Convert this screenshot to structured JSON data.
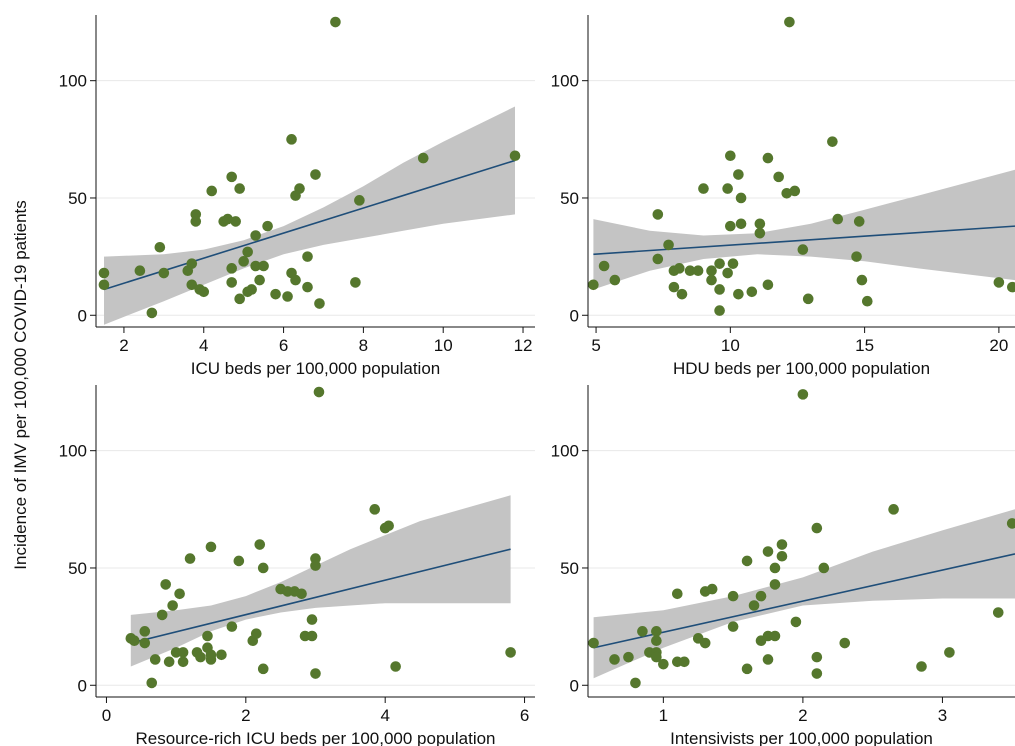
{
  "figure": {
    "ylabel": "Incidence of IMV per 100,000 COVID-19 patients",
    "colors": {
      "point": "#55772d",
      "fit_line": "#1f4e79",
      "ci_band": "#c4c4c4",
      "axis": "#111111",
      "grid": "#e8e8e8"
    }
  },
  "chart_data": [
    {
      "type": "scatter",
      "xlabel": "ICU beds per 100,000 population",
      "ylabel": "",
      "xlim": [
        1.3,
        12.3
      ],
      "ylim": [
        -5,
        128
      ],
      "xticks": [
        2,
        4,
        6,
        8,
        10,
        12
      ],
      "yticks": [
        0,
        50,
        100
      ],
      "grid": true,
      "fit": {
        "x": [
          1.5,
          11.8
        ],
        "y": [
          11,
          66
        ]
      },
      "ci_band": {
        "x": [
          1.5,
          3,
          4,
          5,
          6,
          7,
          8,
          9,
          10,
          11.8
        ],
        "lower": [
          -4,
          6,
          13,
          20,
          26,
          30,
          33,
          36,
          39,
          43
        ],
        "upper": [
          25,
          26,
          28,
          32,
          38,
          46,
          55,
          65,
          74,
          89
        ]
      },
      "points": [
        [
          1.5,
          18
        ],
        [
          1.5,
          13
        ],
        [
          2.4,
          19
        ],
        [
          2.7,
          1
        ],
        [
          2.9,
          29
        ],
        [
          3.0,
          18
        ],
        [
          3.6,
          19
        ],
        [
          3.7,
          22
        ],
        [
          3.7,
          13
        ],
        [
          3.8,
          43
        ],
        [
          3.8,
          40
        ],
        [
          3.9,
          11
        ],
        [
          4.0,
          10
        ],
        [
          4.2,
          53
        ],
        [
          4.5,
          40
        ],
        [
          4.6,
          41
        ],
        [
          4.7,
          20
        ],
        [
          4.7,
          14
        ],
        [
          4.7,
          59
        ],
        [
          4.8,
          40
        ],
        [
          4.9,
          54
        ],
        [
          4.9,
          7
        ],
        [
          5.0,
          23
        ],
        [
          5.1,
          27
        ],
        [
          5.1,
          10
        ],
        [
          5.2,
          11
        ],
        [
          5.3,
          21
        ],
        [
          5.3,
          34
        ],
        [
          5.4,
          15
        ],
        [
          5.5,
          21
        ],
        [
          5.6,
          38
        ],
        [
          5.8,
          9
        ],
        [
          6.1,
          8
        ],
        [
          6.2,
          18
        ],
        [
          6.2,
          75
        ],
        [
          6.3,
          51
        ],
        [
          6.3,
          15
        ],
        [
          6.4,
          54
        ],
        [
          6.6,
          25
        ],
        [
          6.6,
          12
        ],
        [
          6.8,
          60
        ],
        [
          6.9,
          5
        ],
        [
          7.3,
          125
        ],
        [
          7.8,
          14
        ],
        [
          7.9,
          49
        ],
        [
          9.5,
          67
        ],
        [
          11.8,
          68
        ]
      ]
    },
    {
      "type": "scatter",
      "xlabel": "HDU beds per 100,000 population",
      "ylabel": "",
      "xlim": [
        4.7,
        20.6
      ],
      "ylim": [
        -5,
        128
      ],
      "xticks": [
        5,
        10,
        15,
        20
      ],
      "yticks": [
        0,
        50,
        100
      ],
      "grid": true,
      "fit": {
        "x": [
          4.9,
          20.6
        ],
        "y": [
          26,
          38
        ]
      },
      "ci_band": {
        "x": [
          4.9,
          7,
          9,
          11,
          13,
          15,
          17,
          20.6
        ],
        "lower": [
          11,
          19,
          24,
          26,
          25,
          23,
          20,
          15
        ],
        "upper": [
          41,
          36,
          34,
          35,
          39,
          45,
          51,
          62
        ]
      },
      "points": [
        [
          4.9,
          13
        ],
        [
          5.3,
          21
        ],
        [
          5.7,
          15
        ],
        [
          7.3,
          43
        ],
        [
          7.3,
          24
        ],
        [
          7.7,
          30
        ],
        [
          7.9,
          19
        ],
        [
          7.9,
          12
        ],
        [
          8.1,
          20
        ],
        [
          8.2,
          9
        ],
        [
          8.5,
          19
        ],
        [
          8.8,
          19
        ],
        [
          9.0,
          54
        ],
        [
          9.3,
          19
        ],
        [
          9.3,
          15
        ],
        [
          9.6,
          2
        ],
        [
          9.6,
          22
        ],
        [
          9.6,
          11
        ],
        [
          9.9,
          54
        ],
        [
          9.9,
          18
        ],
        [
          10.0,
          38
        ],
        [
          10.0,
          68
        ],
        [
          10.1,
          22
        ],
        [
          10.3,
          9
        ],
        [
          10.3,
          60
        ],
        [
          10.4,
          50
        ],
        [
          10.4,
          39
        ],
        [
          10.8,
          10
        ],
        [
          11.1,
          39
        ],
        [
          11.1,
          35
        ],
        [
          11.4,
          67
        ],
        [
          11.4,
          13
        ],
        [
          11.8,
          59
        ],
        [
          12.1,
          52
        ],
        [
          12.2,
          125
        ],
        [
          12.4,
          53
        ],
        [
          12.7,
          28
        ],
        [
          12.9,
          7
        ],
        [
          13.8,
          74
        ],
        [
          14.0,
          41
        ],
        [
          14.7,
          25
        ],
        [
          14.8,
          40
        ],
        [
          14.9,
          15
        ],
        [
          15.1,
          6
        ],
        [
          20.0,
          14
        ],
        [
          20.5,
          12
        ]
      ]
    },
    {
      "type": "scatter",
      "xlabel": "Resource-rich ICU beds per 100,000 population",
      "ylabel": "",
      "xlim": [
        -0.15,
        6.15
      ],
      "ylim": [
        -5,
        128
      ],
      "xticks": [
        0,
        2,
        4,
        6
      ],
      "yticks": [
        0,
        50,
        100
      ],
      "grid": true,
      "fit": {
        "x": [
          0.35,
          5.8
        ],
        "y": [
          18,
          58
        ]
      },
      "ci_band": {
        "x": [
          0.35,
          1,
          1.5,
          2,
          2.5,
          3,
          3.5,
          4,
          4.5,
          5.8
        ],
        "lower": [
          8,
          16,
          23,
          28,
          31,
          33,
          34,
          35,
          35,
          35
        ],
        "upper": [
          30,
          32,
          34,
          38,
          44,
          51,
          58,
          64,
          70,
          81
        ]
      },
      "points": [
        [
          0.35,
          20
        ],
        [
          0.4,
          19
        ],
        [
          0.55,
          18
        ],
        [
          0.55,
          23
        ],
        [
          0.65,
          1
        ],
        [
          0.7,
          11
        ],
        [
          0.8,
          30
        ],
        [
          0.85,
          43
        ],
        [
          0.9,
          10
        ],
        [
          0.95,
          34
        ],
        [
          1.0,
          14
        ],
        [
          1.05,
          39
        ],
        [
          1.1,
          10
        ],
        [
          1.1,
          14
        ],
        [
          1.2,
          54
        ],
        [
          1.3,
          14
        ],
        [
          1.35,
          12
        ],
        [
          1.45,
          21
        ],
        [
          1.45,
          16
        ],
        [
          1.5,
          59
        ],
        [
          1.5,
          11
        ],
        [
          1.5,
          13
        ],
        [
          1.65,
          13
        ],
        [
          1.8,
          25
        ],
        [
          1.9,
          53
        ],
        [
          2.1,
          19
        ],
        [
          2.15,
          22
        ],
        [
          2.2,
          60
        ],
        [
          2.25,
          50
        ],
        [
          2.25,
          7
        ],
        [
          2.5,
          41
        ],
        [
          2.6,
          40
        ],
        [
          2.7,
          40
        ],
        [
          2.8,
          39
        ],
        [
          2.85,
          21
        ],
        [
          2.95,
          21
        ],
        [
          2.95,
          28
        ],
        [
          3.0,
          54
        ],
        [
          3.0,
          5
        ],
        [
          3.0,
          51
        ],
        [
          3.05,
          125
        ],
        [
          3.85,
          75
        ],
        [
          4.0,
          67
        ],
        [
          4.05,
          68
        ],
        [
          4.15,
          8
        ],
        [
          5.8,
          14
        ]
      ]
    },
    {
      "type": "scatter",
      "xlabel": "Intensivists per 100,000 population",
      "ylabel": "",
      "xlim": [
        0.46,
        3.52
      ],
      "ylim": [
        -5,
        128
      ],
      "xticks": [
        1,
        2,
        3
      ],
      "yticks": [
        0,
        50,
        100
      ],
      "grid": true,
      "fit": {
        "x": [
          0.5,
          3.52
        ],
        "y": [
          16,
          56
        ]
      },
      "ci_band": {
        "x": [
          0.5,
          1,
          1.5,
          2,
          2.5,
          3,
          3.52
        ],
        "lower": [
          3,
          16,
          27,
          34,
          36,
          37,
          37
        ],
        "upper": [
          29,
          32,
          38,
          46,
          57,
          66,
          75
        ]
      },
      "points": [
        [
          0.5,
          18
        ],
        [
          0.65,
          11
        ],
        [
          0.75,
          12
        ],
        [
          0.8,
          1
        ],
        [
          0.85,
          23
        ],
        [
          0.9,
          14
        ],
        [
          0.95,
          23
        ],
        [
          0.95,
          14
        ],
        [
          0.95,
          19
        ],
        [
          0.95,
          12
        ],
        [
          1.0,
          9
        ],
        [
          1.1,
          39
        ],
        [
          1.1,
          10
        ],
        [
          1.15,
          10
        ],
        [
          1.25,
          20
        ],
        [
          1.3,
          40
        ],
        [
          1.3,
          18
        ],
        [
          1.35,
          41
        ],
        [
          1.5,
          38
        ],
        [
          1.5,
          25
        ],
        [
          1.6,
          53
        ],
        [
          1.6,
          7
        ],
        [
          1.65,
          34
        ],
        [
          1.7,
          38
        ],
        [
          1.7,
          19
        ],
        [
          1.75,
          57
        ],
        [
          1.75,
          21
        ],
        [
          1.75,
          11
        ],
        [
          1.8,
          50
        ],
        [
          1.8,
          43
        ],
        [
          1.8,
          21
        ],
        [
          1.85,
          60
        ],
        [
          1.85,
          55
        ],
        [
          1.95,
          27
        ],
        [
          2.0,
          124
        ],
        [
          2.1,
          67
        ],
        [
          2.1,
          12
        ],
        [
          2.1,
          5
        ],
        [
          2.15,
          50
        ],
        [
          2.3,
          18
        ],
        [
          2.65,
          75
        ],
        [
          2.85,
          8
        ],
        [
          3.05,
          14
        ],
        [
          3.4,
          31
        ],
        [
          3.5,
          69
        ]
      ]
    }
  ]
}
